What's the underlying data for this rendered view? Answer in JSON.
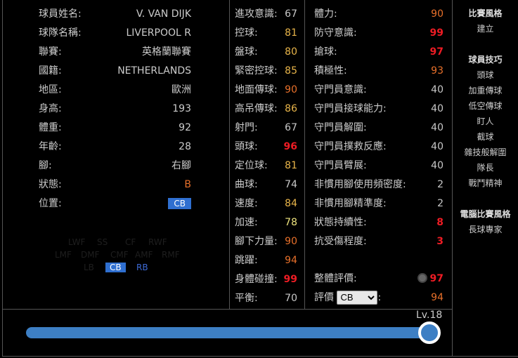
{
  "info": [
    {
      "label": "球員姓名:",
      "value": "V. VAN DIJK"
    },
    {
      "label": "球隊名稱:",
      "value": "LIVERPOOL R"
    },
    {
      "label": "聯賽:",
      "value": "英格蘭聯賽"
    },
    {
      "label": "國籍:",
      "value": "NETHERLANDS"
    },
    {
      "label": "地區:",
      "value": "歐洲"
    },
    {
      "label": "身高:",
      "value": "193"
    },
    {
      "label": "體重:",
      "value": "92"
    },
    {
      "label": "年齡:",
      "value": "28"
    },
    {
      "label": "腳:",
      "value": "右腳"
    },
    {
      "label": "狀態:",
      "value": "B"
    },
    {
      "label": "位置:",
      "value": "CB"
    }
  ],
  "positions": {
    "row1": [
      "LWF",
      "SS",
      "CF",
      "RWF"
    ],
    "row2": [
      "LMF",
      "DMF",
      "CMF",
      "AMF",
      "RMF"
    ],
    "row3": [
      "LB",
      "CB",
      "RB"
    ],
    "selected": "CB"
  },
  "stats1": [
    {
      "label": "進攻意識:",
      "value": "67",
      "c": "grey"
    },
    {
      "label": "控球:",
      "value": "81",
      "c": "yel"
    },
    {
      "label": "盤球:",
      "value": "80",
      "c": "yel"
    },
    {
      "label": "緊密控球:",
      "value": "85",
      "c": "yel"
    },
    {
      "label": "地面傳球:",
      "value": "90",
      "c": "or"
    },
    {
      "label": "高吊傳球:",
      "value": "86",
      "c": "yel"
    },
    {
      "label": "射門:",
      "value": "67",
      "c": "grey"
    },
    {
      "label": "頭球:",
      "value": "96",
      "c": "red"
    },
    {
      "label": "定位球:",
      "value": "81",
      "c": "yel"
    },
    {
      "label": "曲球:",
      "value": "74",
      "c": "grey"
    },
    {
      "label": "速度:",
      "value": "84",
      "c": "yel"
    },
    {
      "label": "加速:",
      "value": "78",
      "c": "pale"
    },
    {
      "label": "腳下力量:",
      "value": "90",
      "c": "or"
    },
    {
      "label": "跳躍:",
      "value": "94",
      "c": "or"
    },
    {
      "label": "身體碰撞:",
      "value": "99",
      "c": "red"
    },
    {
      "label": "平衡:",
      "value": "70",
      "c": "grey"
    }
  ],
  "stats2": [
    {
      "label": "體力:",
      "value": "90",
      "c": "or"
    },
    {
      "label": "防守意識:",
      "value": "99",
      "c": "red"
    },
    {
      "label": "搶球:",
      "value": "97",
      "c": "red"
    },
    {
      "label": "積極性:",
      "value": "93",
      "c": "or"
    },
    {
      "label": "守門員意識:",
      "value": "40",
      "c": "grey"
    },
    {
      "label": "守門員接球能力:",
      "value": "40",
      "c": "grey"
    },
    {
      "label": "守門員解圍:",
      "value": "40",
      "c": "grey"
    },
    {
      "label": "守門員撲救反應:",
      "value": "40",
      "c": "grey"
    },
    {
      "label": "守門員臂展:",
      "value": "40",
      "c": "grey"
    },
    {
      "label": "非慣用腳使用頻密度:",
      "value": "2",
      "c": "grey"
    },
    {
      "label": "非慣用腳精準度:",
      "value": "2",
      "c": "grey"
    },
    {
      "label": "狀態持續性:",
      "value": "8",
      "c": "red"
    },
    {
      "label": "抗受傷程度:",
      "value": "3",
      "c": "red"
    }
  ],
  "overall": {
    "label": "整體評價:",
    "value": "97",
    "icon": "badge-icon"
  },
  "rating": {
    "label": "評價",
    "select": "CB",
    "suffix": ":",
    "value": "94"
  },
  "side": {
    "style_h": "比賽風格",
    "style": "建立",
    "skills_h": "球員技巧",
    "skills": [
      "頭球",
      "加重傳球",
      "低空傳球",
      "盯人",
      "截球",
      "雜技般解圍",
      "隊長",
      "戰鬥精神"
    ],
    "ai_h": "電腦比賽風格",
    "ai": "長球專家"
  },
  "level": {
    "label": "Lv.18",
    "value": 18,
    "max": 18
  },
  "colors": {
    "accent": "#3d7fc4",
    "badge": "#2f6fd0"
  }
}
